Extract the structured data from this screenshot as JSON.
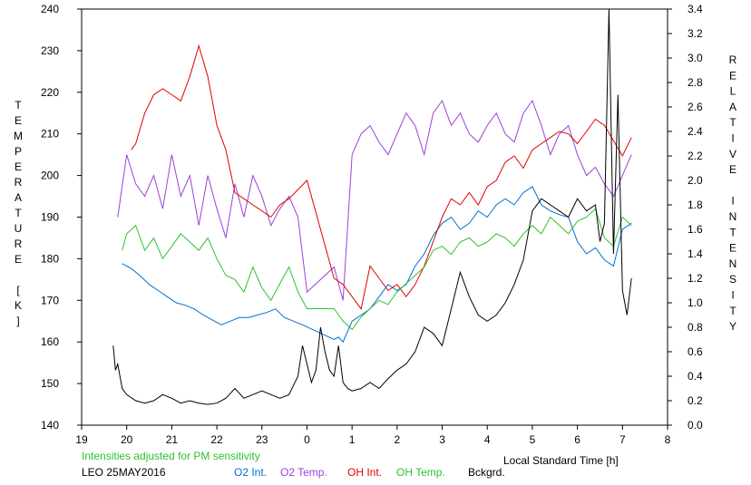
{
  "chart_data": {
    "type": "line",
    "title": "",
    "xlabel": "Local Standard Time [h]",
    "ylabel_left": "TEMPERATURE [K]",
    "ylabel_right": "RELATIVE INTENSITY",
    "xlim": [
      -5,
      8
    ],
    "ylim_left": [
      140,
      240
    ],
    "ylim_right": [
      0.0,
      3.4
    ],
    "x_tick_labels": [
      "19",
      "20",
      "21",
      "22",
      "23",
      "0",
      "1",
      "2",
      "3",
      "4",
      "5",
      "6",
      "7",
      "8"
    ],
    "y_left_ticks": [
      140,
      150,
      160,
      170,
      180,
      190,
      200,
      210,
      220,
      230,
      240
    ],
    "y_right_ticks": [
      "0.0",
      "0.2",
      "0.4",
      "0.6",
      "0.8",
      "1.0",
      "1.2",
      "1.4",
      "1.6",
      "1.8",
      "2.0",
      "2.2",
      "2.4",
      "2.6",
      "2.8",
      "3.0",
      "3.2",
      "3.4"
    ],
    "grid": false,
    "legend_position": "bottom",
    "note": "Intensities adjusted for PM sensitivity",
    "station": "LEO 25MAY2016",
    "series": [
      {
        "name": "O2 Int.",
        "axis": "right",
        "color": "#0070d0",
        "x": [
          -4.1,
          -3.9,
          -3.7,
          -3.5,
          -3.3,
          -3.1,
          -2.9,
          -2.7,
          -2.5,
          -2.3,
          -2.1,
          -1.9,
          -1.7,
          -1.5,
          -1.3,
          -1.1,
          -0.9,
          -0.7,
          -0.5,
          -0.3,
          -0.1,
          0.6,
          0.7,
          0.8,
          1.0,
          1.2,
          1.4,
          1.6,
          1.8,
          2.0,
          2.2,
          2.4,
          2.6,
          2.8,
          3.0,
          3.2,
          3.4,
          3.6,
          3.8,
          4.0,
          4.2,
          4.4,
          4.6,
          4.8,
          5.0,
          5.2,
          5.4,
          5.6,
          5.8,
          6.0,
          6.2,
          6.4,
          6.6,
          6.8,
          7.0,
          7.2
        ],
        "values": [
          1.32,
          1.28,
          1.22,
          1.15,
          1.1,
          1.05,
          1.0,
          0.98,
          0.95,
          0.9,
          0.86,
          0.82,
          0.85,
          0.88,
          0.88,
          0.9,
          0.92,
          0.95,
          0.88,
          0.85,
          0.82,
          0.7,
          0.72,
          0.68,
          0.85,
          0.9,
          0.95,
          1.05,
          1.15,
          1.1,
          1.15,
          1.3,
          1.4,
          1.55,
          1.65,
          1.7,
          1.6,
          1.65,
          1.75,
          1.7,
          1.8,
          1.85,
          1.8,
          1.9,
          1.95,
          1.8,
          1.75,
          1.72,
          1.7,
          1.5,
          1.4,
          1.45,
          1.35,
          1.3,
          1.6,
          1.65
        ]
      },
      {
        "name": "O2 Temp.",
        "axis": "left",
        "color": "#9a40d8",
        "x": [
          -4.2,
          -4.0,
          -3.8,
          -3.6,
          -3.4,
          -3.2,
          -3.0,
          -2.8,
          -2.6,
          -2.4,
          -2.2,
          -2.0,
          -1.8,
          -1.6,
          -1.4,
          -1.2,
          -1.0,
          -0.8,
          -0.6,
          -0.4,
          -0.2,
          0.0,
          0.6,
          0.8,
          1.0,
          1.2,
          1.4,
          1.6,
          1.8,
          2.0,
          2.2,
          2.4,
          2.6,
          2.8,
          3.0,
          3.2,
          3.4,
          3.6,
          3.8,
          4.0,
          4.2,
          4.4,
          4.6,
          4.8,
          5.0,
          5.2,
          5.4,
          5.6,
          5.8,
          6.0,
          6.2,
          6.4,
          6.6,
          6.8,
          7.0,
          7.2
        ],
        "values": [
          190,
          205,
          198,
          195,
          200,
          192,
          205,
          195,
          200,
          188,
          200,
          192,
          185,
          198,
          190,
          200,
          195,
          188,
          192,
          195,
          190,
          172,
          178,
          170,
          205,
          210,
          212,
          208,
          205,
          210,
          215,
          212,
          205,
          215,
          218,
          212,
          215,
          210,
          208,
          212,
          215,
          210,
          208,
          215,
          218,
          212,
          205,
          210,
          212,
          205,
          200,
          202,
          198,
          195,
          200,
          205
        ]
      },
      {
        "name": "OH Int.",
        "axis": "right",
        "color": "#e00000",
        "x": [
          -3.9,
          -3.8,
          -3.6,
          -3.4,
          -3.2,
          -3.0,
          -2.8,
          -2.6,
          -2.4,
          -2.2,
          -2.0,
          -1.8,
          -1.6,
          -1.4,
          -1.2,
          -1.0,
          -0.8,
          -0.6,
          -0.4,
          0.0,
          0.6,
          0.8,
          1.0,
          1.2,
          1.4,
          1.6,
          1.8,
          2.0,
          2.2,
          2.4,
          2.6,
          2.8,
          3.0,
          3.2,
          3.4,
          3.6,
          3.8,
          4.0,
          4.2,
          4.4,
          4.6,
          4.8,
          5.0,
          5.2,
          5.4,
          5.6,
          5.8,
          6.0,
          6.2,
          6.4,
          6.6,
          7.0,
          7.2
        ],
        "values": [
          2.25,
          2.3,
          2.55,
          2.7,
          2.75,
          2.7,
          2.65,
          2.85,
          3.1,
          2.85,
          2.45,
          2.25,
          1.9,
          1.85,
          1.8,
          1.75,
          1.7,
          1.8,
          1.85,
          2.0,
          1.2,
          1.15,
          1.05,
          0.95,
          1.3,
          1.2,
          1.1,
          1.15,
          1.05,
          1.15,
          1.3,
          1.5,
          1.7,
          1.85,
          1.8,
          1.9,
          1.8,
          1.95,
          2.0,
          2.15,
          2.2,
          2.1,
          2.25,
          2.3,
          2.35,
          2.4,
          2.38,
          2.3,
          2.4,
          2.5,
          2.45,
          2.2,
          2.35
        ]
      },
      {
        "name": "OH Temp.",
        "axis": "left",
        "color": "#30c030",
        "x": [
          -4.1,
          -4.0,
          -3.8,
          -3.6,
          -3.4,
          -3.2,
          -3.0,
          -2.8,
          -2.6,
          -2.4,
          -2.2,
          -2.0,
          -1.8,
          -1.6,
          -1.4,
          -1.2,
          -1.0,
          -0.8,
          -0.6,
          -0.4,
          -0.2,
          0.0,
          0.6,
          0.8,
          1.0,
          1.2,
          1.4,
          1.6,
          1.8,
          2.0,
          2.2,
          2.4,
          2.6,
          2.8,
          3.0,
          3.2,
          3.4,
          3.6,
          3.8,
          4.0,
          4.2,
          4.4,
          4.6,
          4.8,
          5.0,
          5.2,
          5.4,
          5.6,
          5.8,
          6.0,
          6.2,
          6.4,
          6.6,
          6.8,
          7.0,
          7.2
        ],
        "values": [
          182,
          186,
          188,
          182,
          185,
          180,
          183,
          186,
          184,
          182,
          185,
          180,
          176,
          175,
          172,
          178,
          173,
          170,
          174,
          178,
          172,
          168,
          168,
          165,
          163,
          166,
          168,
          170,
          169,
          172,
          174,
          176,
          178,
          182,
          183,
          181,
          184,
          185,
          183,
          184,
          186,
          185,
          183,
          186,
          188,
          186,
          190,
          188,
          186,
          189,
          190,
          192,
          185,
          183,
          190,
          188
        ]
      },
      {
        "name": "Bckgrd.",
        "axis": "right",
        "color": "#000000",
        "x": [
          -4.3,
          -4.25,
          -4.2,
          -4.1,
          -4.0,
          -3.8,
          -3.6,
          -3.4,
          -3.2,
          -3.0,
          -2.8,
          -2.6,
          -2.4,
          -2.2,
          -2.0,
          -1.8,
          -1.6,
          -1.4,
          -1.2,
          -1.0,
          -0.8,
          -0.6,
          -0.4,
          -0.2,
          -0.1,
          0.0,
          0.1,
          0.2,
          0.3,
          0.4,
          0.5,
          0.6,
          0.7,
          0.8,
          0.9,
          1.0,
          1.2,
          1.4,
          1.6,
          1.8,
          2.0,
          2.2,
          2.4,
          2.6,
          2.8,
          3.0,
          3.2,
          3.4,
          3.6,
          3.8,
          4.0,
          4.2,
          4.4,
          4.6,
          4.8,
          5.0,
          5.2,
          5.4,
          5.6,
          5.8,
          6.0,
          6.2,
          6.4,
          6.5,
          6.6,
          6.7,
          6.8,
          6.9,
          7.0,
          7.1,
          7.2
        ],
        "values": [
          0.65,
          0.45,
          0.5,
          0.3,
          0.25,
          0.2,
          0.18,
          0.2,
          0.25,
          0.22,
          0.18,
          0.2,
          0.18,
          0.17,
          0.18,
          0.22,
          0.3,
          0.22,
          0.25,
          0.28,
          0.25,
          0.22,
          0.25,
          0.4,
          0.65,
          0.5,
          0.35,
          0.45,
          0.8,
          0.6,
          0.45,
          0.4,
          0.65,
          0.35,
          0.3,
          0.28,
          0.3,
          0.35,
          0.3,
          0.38,
          0.45,
          0.5,
          0.6,
          0.8,
          0.75,
          0.65,
          0.95,
          1.25,
          1.05,
          0.9,
          0.85,
          0.9,
          1.0,
          1.15,
          1.35,
          1.75,
          1.85,
          1.8,
          1.75,
          1.7,
          1.85,
          1.75,
          1.8,
          1.5,
          1.65,
          3.4,
          1.4,
          2.7,
          1.1,
          0.9,
          1.2
        ]
      }
    ]
  }
}
